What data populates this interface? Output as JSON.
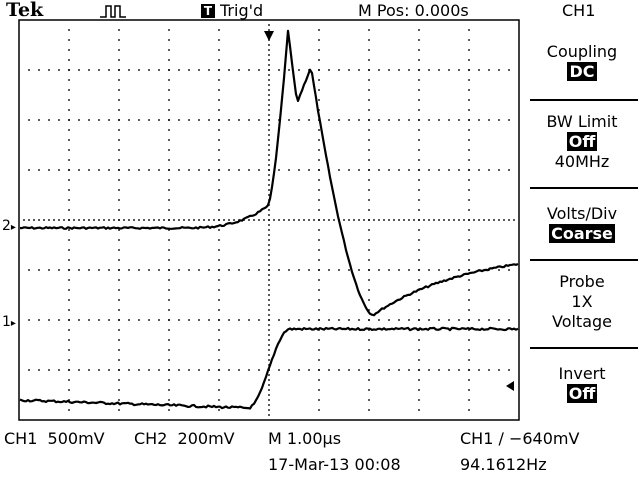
{
  "header": {
    "brand": "Tek",
    "acquire_icon": "run-pulse-icon",
    "trigger_state_badge": "T",
    "trigger_state": "Trig'd",
    "m_pos": "M Pos: 0.000s",
    "channel": "CH1"
  },
  "menu": {
    "coupling": {
      "title": "Coupling",
      "value": "DC"
    },
    "bw_limit": {
      "title": "BW Limit",
      "value": "Off",
      "sub": "40MHz"
    },
    "volts_div": {
      "title": "Volts/Div",
      "value": "Coarse"
    },
    "probe": {
      "title": "Probe",
      "line1": "1X",
      "line2": "Voltage"
    },
    "invert": {
      "title": "Invert",
      "value": "Off"
    }
  },
  "markers": {
    "ch2": "2",
    "ch1": "1"
  },
  "footer": {
    "ch1_scale": "CH1  500mV",
    "ch2_scale": "CH2  200mV",
    "timebase": "M 1.00µs",
    "trigger": "CH1 ∕ −640mV",
    "date": "17-Mar-13 00:08",
    "frequency": "94.1612Hz"
  }
}
